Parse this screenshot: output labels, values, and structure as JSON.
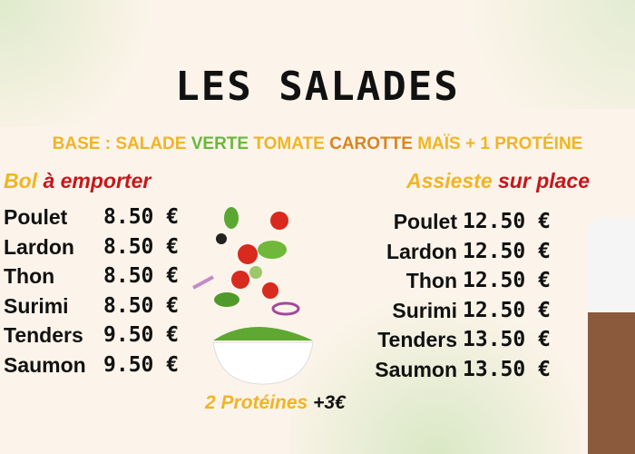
{
  "title": "LES SALADES",
  "ingredients": {
    "p1": "BASE : SALADE ",
    "p2": "VERTE ",
    "p3": "TOMATE ",
    "p4": "CAROTTE ",
    "p5": "MAÏS + 1 PROTÉINE"
  },
  "take_away": {
    "word1": "Bol ",
    "word2": "à emporter",
    "items": [
      {
        "name": "Poulet",
        "price": "8.50 €"
      },
      {
        "name": "Lardon",
        "price": "8.50 €"
      },
      {
        "name": "Thon",
        "price": "8.50 €"
      },
      {
        "name": "Surimi",
        "price": "8.50 €"
      },
      {
        "name": "Tenders",
        "price": "9.50 €"
      },
      {
        "name": "Saumon",
        "price": "9.50 €"
      }
    ]
  },
  "on_site": {
    "word1": "Assieste ",
    "word2": "sur place",
    "items": [
      {
        "name": "Poulet",
        "price": "12.50 €"
      },
      {
        "name": "Lardon",
        "price": "12.50 €"
      },
      {
        "name": "Thon",
        "price": "12.50 €"
      },
      {
        "name": "Surimi",
        "price": "12.50 €"
      },
      {
        "name": "Tenders",
        "price": "13.50 €"
      },
      {
        "name": "Saumon",
        "price": "13.50 €"
      }
    ]
  },
  "extra": {
    "label": "2 Protéines ",
    "price": "+3€"
  },
  "colors": {
    "yellow": "#f0b524",
    "green": "#69b93a",
    "orange": "#d9851f",
    "red": "#c8151b"
  }
}
